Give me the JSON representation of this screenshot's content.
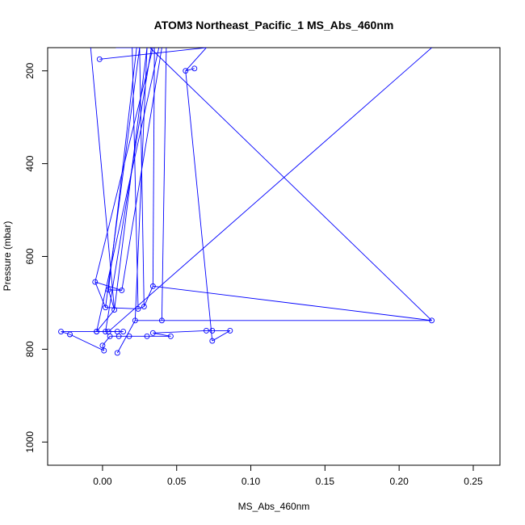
{
  "chart_data": {
    "type": "line",
    "title": "ATOM3 Northeast_Pacific_1 MS_Abs_460nm",
    "xlabel": "MS_Abs_460nm",
    "ylabel": "Pressure (mbar)",
    "xlim": [
      -0.037,
      0.268
    ],
    "ylim": [
      1050,
      150
    ],
    "y_reversed": true,
    "x_ticks": [
      0.0,
      0.05,
      0.1,
      0.15,
      0.2,
      0.25
    ],
    "x_tick_labels": [
      "0.00",
      "0.05",
      "0.10",
      "0.15",
      "0.20",
      "0.25"
    ],
    "y_ticks": [
      200,
      400,
      600,
      800,
      1000
    ],
    "y_tick_labels": [
      "200",
      "400",
      "600",
      "800",
      "1000"
    ],
    "grid": false,
    "legend": "none",
    "color": "#0000ff",
    "series": [
      {
        "x": [
          -0.008,
          -0.002,
          0.07,
          0.056,
          0.062,
          0.025,
          0.02,
          0.009,
          0.025,
          0.035,
          0.043,
          0.032,
          0.03,
          0.222,
          0.033,
          0.038,
          0.03,
          0.023,
          0.04,
          0.034,
          0.074,
          0.086,
          0.074,
          0.07,
          0.034,
          0.046,
          0.03,
          0.018,
          0.011,
          0.005,
          0.0,
          0.001,
          -0.022,
          -0.028,
          -0.004,
          0.014,
          0.004,
          0.01,
          0.002,
          -0.004,
          0.008,
          0.004,
          0.013,
          -0.005,
          0.002,
          0.024,
          0.028,
          0.034,
          0.222,
          0.04,
          0.022,
          0.01
        ],
        "y": [
          150,
          175,
          150,
          200,
          195,
          150,
          150,
          150,
          150,
          150,
          150,
          150,
          150,
          150,
          150,
          150,
          150,
          150,
          150,
          150,
          782,
          760,
          760,
          760,
          765,
          772,
          772,
          772,
          772,
          772,
          792,
          803,
          768,
          762,
          762,
          762,
          762,
          762,
          762,
          762,
          715,
          672,
          673,
          655,
          710,
          713,
          708,
          664,
          738,
          738,
          738,
          808
        ],
        "segments": [
          [
            1,
            2
          ],
          [
            2,
            3
          ],
          [
            3,
            4
          ],
          [
            6,
            7
          ],
          [
            7,
            8
          ],
          [
            20,
            21
          ],
          [
            21,
            22
          ],
          [
            22,
            23
          ],
          [
            23,
            24
          ],
          [
            24,
            25
          ],
          [
            25,
            26
          ],
          [
            26,
            27
          ],
          [
            27,
            28
          ],
          [
            28,
            29
          ],
          [
            29,
            30
          ],
          [
            30,
            31
          ],
          [
            31,
            32
          ],
          [
            32,
            33
          ],
          [
            33,
            34
          ],
          [
            34,
            35
          ],
          [
            35,
            36
          ],
          [
            36,
            37
          ],
          [
            37,
            38
          ],
          [
            38,
            39
          ],
          [
            39,
            40
          ],
          [
            40,
            41
          ],
          [
            41,
            42
          ],
          [
            42,
            43
          ],
          [
            43,
            44
          ],
          [
            44,
            45
          ],
          [
            45,
            46
          ],
          [
            46,
            47
          ],
          [
            47,
            48
          ],
          [
            48,
            49
          ],
          [
            49,
            50
          ],
          [
            50,
            51
          ],
          [
            0,
            40
          ],
          [
            5,
            44
          ],
          [
            6,
            45
          ],
          [
            8,
            46
          ],
          [
            9,
            47
          ],
          [
            10,
            49
          ],
          [
            11,
            48
          ],
          [
            12,
            50
          ],
          [
            13,
            36
          ],
          [
            14,
            38
          ],
          [
            15,
            39
          ],
          [
            16,
            40
          ],
          [
            17,
            41
          ],
          [
            18,
            42
          ],
          [
            19,
            43
          ],
          [
            3,
            20
          ]
        ],
        "markers": [
          1,
          3,
          4,
          20,
          21,
          22,
          23,
          24,
          25,
          26,
          27,
          28,
          29,
          30,
          31,
          32,
          33,
          34,
          35,
          36,
          37,
          38,
          39,
          40,
          41,
          42,
          43,
          44,
          45,
          46,
          47,
          48,
          49,
          50,
          51
        ]
      }
    ]
  }
}
